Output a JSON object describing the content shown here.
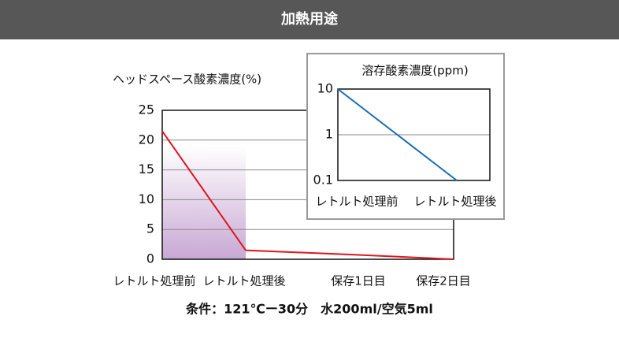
{
  "header": {
    "title": "加熱用途"
  },
  "chart_data": [
    {
      "type": "line",
      "y_label": "ヘッドスペース酸素濃度(%)",
      "categories": [
        "レトルト処理前",
        "レトルト処理後",
        "保存1日目",
        "保存2日目"
      ],
      "values": [
        21.5,
        1.5,
        0.8,
        0
      ],
      "color": "#e0141e",
      "ylim": [
        0,
        25
      ],
      "yticks": [
        0,
        5,
        10,
        15,
        20,
        25
      ],
      "grid": true
    },
    {
      "type": "line",
      "title": "溶存酸素濃度(ppm)",
      "categories": [
        "レトルト処理前",
        "レトルト処理後"
      ],
      "values": [
        10,
        0.1
      ],
      "color": "#1a6fb5",
      "log_scale": true,
      "ylim": [
        0.1,
        10
      ],
      "yticks": [
        0.1,
        1,
        10
      ],
      "grid": true
    }
  ],
  "caption": "条件：121℃ー30分　水200ml/空気5ml"
}
